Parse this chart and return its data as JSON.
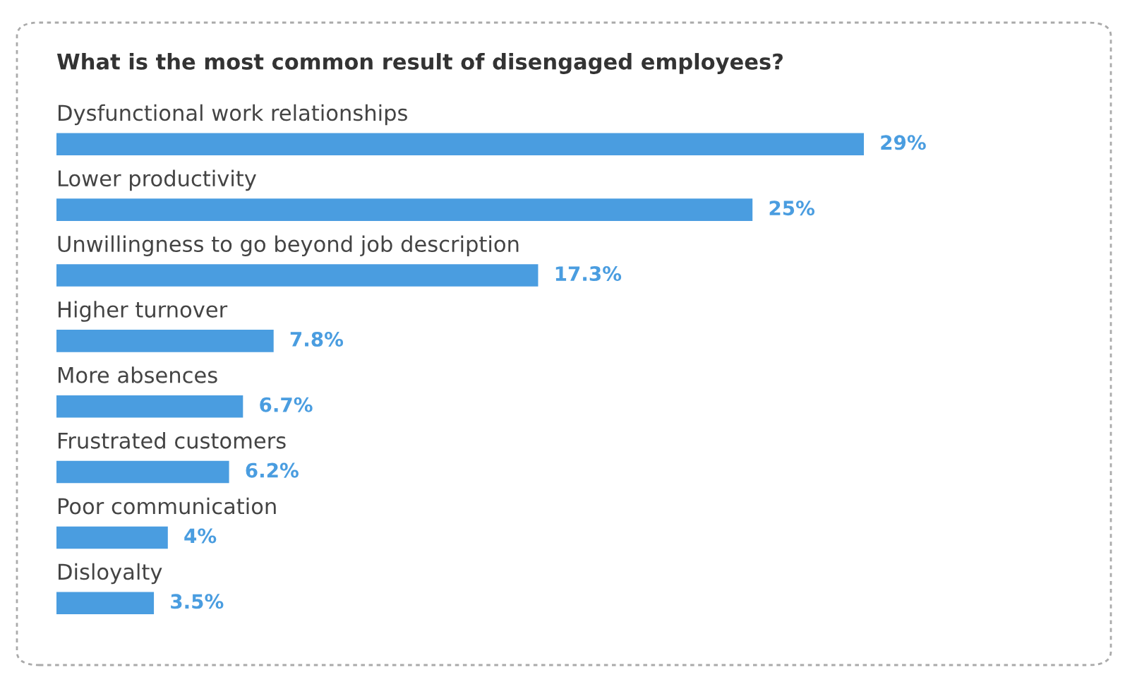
{
  "chart_data": {
    "type": "bar",
    "orientation": "horizontal",
    "title": "What is the most common result of disengaged employees?",
    "categories": [
      "Dysfunctional work relationships",
      "Lower productivity",
      "Unwillingness to go beyond job description",
      "Higher turnover",
      "More absences",
      "Frustrated customers",
      "Poor communication",
      "Disloyalty"
    ],
    "values": [
      29,
      25,
      17.3,
      7.8,
      6.7,
      6.2,
      4,
      3.5
    ],
    "value_labels": [
      "29%",
      "25%",
      "17.3%",
      "7.8%",
      "6.7%",
      "6.2%",
      "4%",
      "3.5%"
    ],
    "color": "#4a9de0"
  }
}
